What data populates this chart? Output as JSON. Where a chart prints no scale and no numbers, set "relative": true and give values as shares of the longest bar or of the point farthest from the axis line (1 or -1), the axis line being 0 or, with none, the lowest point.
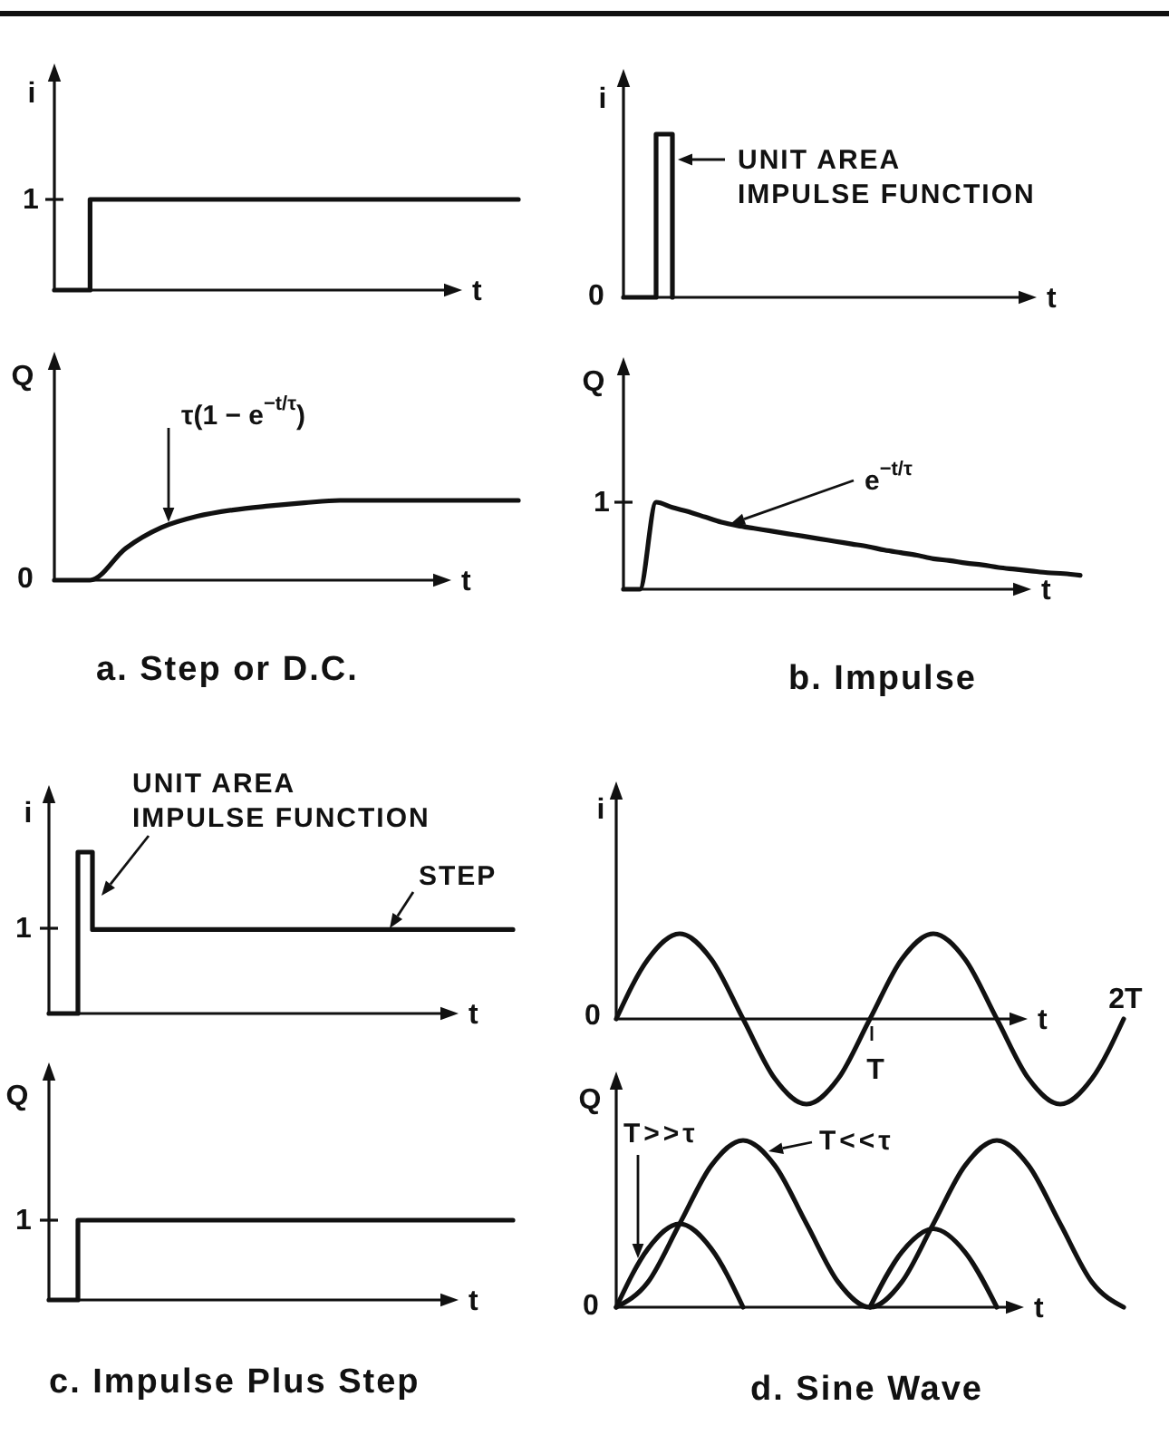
{
  "chart_data": [
    {
      "type": "step",
      "xlabel": "t",
      "ylabel": "i",
      "categories": [
        null,
        null,
        null,
        null,
        null,
        null,
        null,
        null,
        null,
        null,
        null,
        null,
        null,
        null
      ],
      "values": [
        0,
        1,
        1,
        1,
        1,
        1,
        1,
        1,
        1,
        1,
        1,
        1,
        1,
        1
      ],
      "color": "#111111",
      "relative": true,
      "annotations": [
        "1"
      ]
    },
    {
      "type": "step",
      "xlabel": "t",
      "ylabel": "i",
      "categories": [
        null,
        null,
        null,
        null,
        null,
        null,
        null,
        null,
        null,
        null,
        null,
        null,
        null,
        null,
        null,
        null,
        null,
        null,
        null,
        null,
        null,
        null,
        null,
        null,
        null,
        null,
        null,
        null,
        null
      ],
      "values": [
        0,
        0,
        1,
        0,
        null,
        null,
        null,
        null,
        null,
        null,
        null,
        null,
        null,
        null,
        null,
        null,
        null,
        null,
        null,
        null,
        null,
        null,
        null,
        null,
        null,
        null,
        null,
        null,
        null
      ],
      "color": "#111111",
      "relative": true,
      "annotations": [
        "0",
        "UNIT AREA IMPULSE FUNCTION"
      ]
    },
    {
      "type": "line",
      "title": "a. Step or D.C.",
      "xlabel": "t",
      "ylabel": "Q",
      "categories": [
        null,
        null,
        null,
        null,
        null,
        null,
        null,
        null,
        null,
        null,
        null,
        null,
        null,
        null
      ],
      "values": [
        0,
        0,
        0.4,
        0.66,
        0.8,
        0.88,
        0.93,
        0.97,
        1,
        1,
        1,
        1,
        1,
        1
      ],
      "color": "#111111",
      "relative": true,
      "annotations": [
        "0",
        "τ(1 − e$^{−t/τ}$)"
      ]
    },
    {
      "type": "line",
      "title": "b. Impulse",
      "xlabel": "t",
      "ylabel": "Q",
      "categories": [
        null,
        null,
        null,
        null,
        null,
        null,
        null,
        null,
        null,
        null,
        null,
        null,
        null,
        null,
        null,
        null,
        null,
        null,
        null,
        null,
        null,
        null,
        null,
        null,
        null,
        null,
        null,
        null,
        null
      ],
      "values": [
        0,
        0,
        1,
        0.94,
        0.89,
        0.83,
        0.77,
        0.73,
        0.7,
        0.67,
        0.64,
        0.61,
        0.58,
        0.55,
        0.52,
        0.49,
        0.45,
        0.42,
        0.39,
        0.35,
        0.33,
        0.3,
        0.28,
        0.25,
        0.23,
        0.21,
        0.19,
        0.18,
        0.16
      ],
      "color": "#111111",
      "relative": true,
      "annotations": [
        "1",
        "e$^{−t/τ}$"
      ]
    },
    {
      "type": "step",
      "xlabel": "t",
      "ylabel": "i",
      "categories": [
        null,
        null,
        null,
        null,
        null,
        null,
        null,
        null,
        null,
        null,
        null,
        null,
        null,
        null,
        null,
        null,
        null,
        null,
        null,
        null,
        null,
        null,
        null,
        null,
        null,
        null,
        null,
        null,
        null,
        null,
        null,
        null,
        null
      ],
      "values": [
        0,
        0,
        1,
        0.52,
        0.52,
        0.52,
        0.52,
        0.52,
        0.52,
        0.52,
        0.52,
        0.52,
        0.52,
        0.52,
        0.52,
        0.52,
        0.52,
        0.52,
        0.52,
        0.52,
        0.52,
        0.52,
        0.52,
        0.52,
        0.52,
        0.52,
        0.52,
        0.52,
        0.52,
        0.52,
        0.52,
        0.52,
        0.52
      ],
      "color": "#111111",
      "relative": true,
      "annotations": [
        "1",
        "UNIT AREA IMPULSE FUNCTION",
        "STEP"
      ]
    },
    {
      "type": "line",
      "xlabel": "t",
      "ylabel": "i",
      "categories": [
        null,
        null,
        null,
        null,
        null,
        null,
        null,
        null,
        null,
        null,
        null,
        null,
        null,
        null,
        null,
        null,
        null
      ],
      "values": [
        0,
        0.7,
        1,
        0.7,
        0,
        -0.7,
        -1,
        -0.7,
        0,
        0.7,
        1,
        0.7,
        0,
        -0.7,
        -1,
        -0.7,
        0
      ],
      "color": "#111111",
      "relative": true,
      "annotations": [
        "0",
        "T",
        "2T"
      ]
    },
    {
      "type": "step",
      "title": "c. Impulse Plus Step",
      "xlabel": "t",
      "ylabel": "Q",
      "categories": [
        null,
        null,
        null,
        null,
        null,
        null,
        null,
        null,
        null,
        null,
        null,
        null,
        null,
        null,
        null,
        null,
        null,
        null,
        null,
        null,
        null,
        null,
        null,
        null,
        null,
        null,
        null,
        null,
        null,
        null,
        null,
        null,
        null
      ],
      "values": [
        0,
        0,
        1,
        1,
        1,
        1,
        1,
        1,
        1,
        1,
        1,
        1,
        1,
        1,
        1,
        1,
        1,
        1,
        1,
        1,
        1,
        1,
        1,
        1,
        1,
        1,
        1,
        1,
        1,
        1,
        1,
        1,
        1
      ],
      "color": "#111111",
      "relative": true,
      "annotations": [
        "1"
      ]
    },
    {
      "type": "line",
      "title": "d. Sine Wave",
      "xlabel": "t",
      "ylabel": "Q",
      "categories": [
        null,
        null,
        null,
        null,
        null,
        null,
        null,
        null,
        null,
        null,
        null,
        null,
        null,
        null,
        null,
        null,
        null
      ],
      "relative": true,
      "series": [
        {
          "name": "T>>τ",
          "color": "#111111",
          "values": [
            0,
            0.35,
            0.5,
            0.35,
            0,
            null,
            null,
            null,
            0,
            0.33,
            0.47,
            0.33,
            0,
            null,
            null,
            null,
            null
          ]
        },
        {
          "name": "T<<τ",
          "color": "#111111",
          "values": [
            0,
            0.15,
            0.5,
            0.85,
            1,
            0.85,
            0.5,
            0.15,
            0,
            0.15,
            0.5,
            0.85,
            1,
            0.85,
            0.5,
            0.15,
            0
          ]
        }
      ],
      "annotations": [
        "0"
      ]
    }
  ]
}
